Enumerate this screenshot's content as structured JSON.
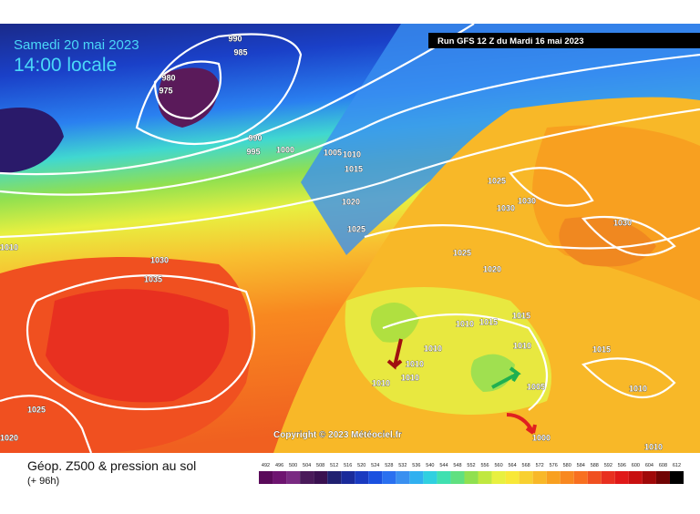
{
  "header": {
    "date": "Samedi 20 mai 2023",
    "time": "14:00 locale",
    "run": "Run GFS 12 Z du Mardi 16 mai 2023"
  },
  "copyright": "Copyright © 2023 Météociel.fr",
  "footer": {
    "title": "Géop. Z500 & pression au sol",
    "lead": "(+ 96h)"
  },
  "scale": {
    "labels": [
      492,
      496,
      500,
      504,
      508,
      512,
      516,
      520,
      524,
      528,
      532,
      536,
      540,
      544,
      548,
      552,
      556,
      560,
      564,
      568,
      572,
      576,
      580,
      584,
      588,
      592,
      596,
      600,
      604,
      608,
      612
    ],
    "colors": [
      "#5a0a5a",
      "#6e1470",
      "#7a2a82",
      "#4a1a5a",
      "#3a1050",
      "#202070",
      "#1a2a9a",
      "#1a3ac0",
      "#1a50e0",
      "#2a70f0",
      "#3a90f0",
      "#30b0f0",
      "#30d0e0",
      "#40e0b0",
      "#60e080",
      "#90e050",
      "#c0e840",
      "#e8f040",
      "#f8e838",
      "#f8d030",
      "#f8b828",
      "#f8a020",
      "#f88820",
      "#f87020",
      "#f05020",
      "#e83020",
      "#e01818",
      "#c81010",
      "#a00808",
      "#700404",
      "#000000"
    ]
  },
  "isobars": [
    "990",
    "985",
    "980",
    "975",
    "990",
    "995",
    "1000",
    "1005",
    "1010",
    "1015",
    "1020",
    "1025",
    "1025",
    "1030",
    "1030",
    "1030",
    "1025",
    "1020",
    "1030",
    "1035",
    "1010",
    "1015",
    "1015",
    "1010",
    "1010",
    "1010",
    "1010",
    "1010",
    "1010",
    "1005",
    "1015",
    "1010",
    "1025",
    "1020",
    "1000",
    "1010"
  ]
}
